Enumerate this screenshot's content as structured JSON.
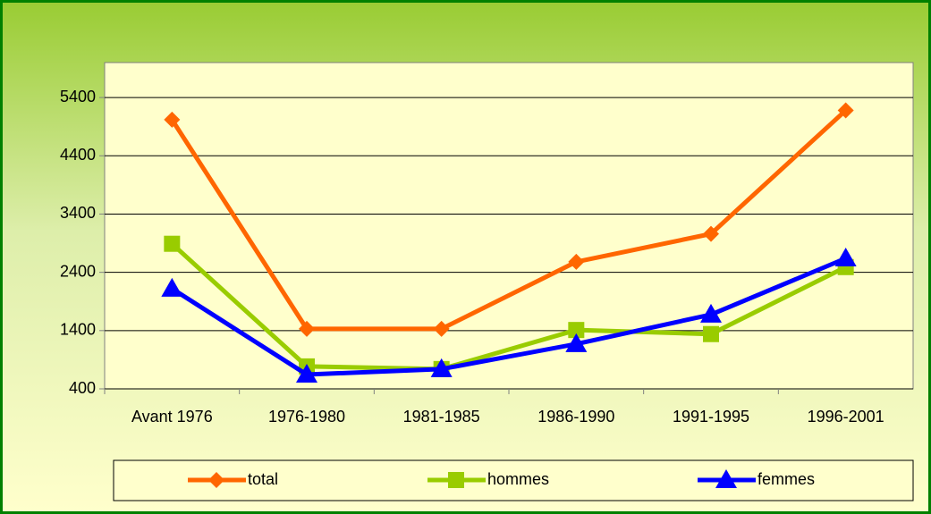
{
  "chart_data": {
    "type": "line",
    "categories": [
      "Avant 1976",
      "1976-1980",
      "1981-1985",
      "1986-1990",
      "1991-1995",
      "1996-2001"
    ],
    "series": [
      {
        "name": "total",
        "color": "#ff6600",
        "marker": "diamond",
        "values": [
          5020,
          1430,
          1430,
          2580,
          3060,
          5180
        ]
      },
      {
        "name": "hommes",
        "color": "#99cc00",
        "marker": "square",
        "values": [
          2890,
          785,
          740,
          1410,
          1340,
          2490
        ]
      },
      {
        "name": "femmes",
        "color": "#0000ff",
        "marker": "triangle",
        "values": [
          2120,
          645,
          740,
          1170,
          1675,
          2640
        ]
      }
    ],
    "ylim": [
      400,
      6000
    ],
    "yticks": [
      400,
      1400,
      2400,
      3400,
      4400,
      5400
    ],
    "grid": true,
    "legend": "bottom"
  }
}
